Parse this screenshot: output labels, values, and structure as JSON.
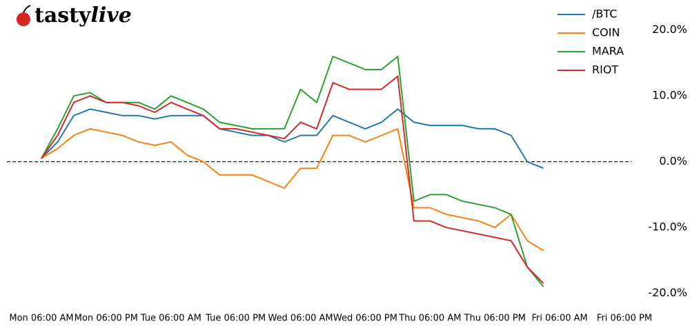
{
  "logo": {
    "text1": "tasty",
    "text2": "live"
  },
  "chart_data": {
    "type": "line",
    "categories": [
      "Mon 06:00 AM",
      null,
      null,
      null,
      "Mon 06:00 PM",
      null,
      null,
      null,
      "Tue 06:00 AM",
      null,
      null,
      null,
      "Tue 06:00 PM",
      null,
      null,
      null,
      "Wed 06:00 AM",
      null,
      null,
      null,
      "Wed 06:00 PM",
      null,
      null,
      null,
      "Thu 06:00 AM",
      null,
      null,
      null,
      "Thu 06:00 PM",
      null,
      null,
      null,
      "Fri 06:00 AM",
      null,
      null,
      null,
      "Fri 06:00 PM"
    ],
    "series": [
      {
        "name": "/BTC",
        "color": "#1f77b4",
        "values": [
          0.5,
          3,
          7,
          8,
          7.5,
          7,
          7,
          6.5,
          7,
          7,
          7,
          5,
          4.5,
          4,
          4,
          3,
          4,
          4,
          7,
          6,
          5,
          6,
          8,
          6,
          5.5,
          5.5,
          5.5,
          5,
          5,
          4,
          0,
          -1,
          null,
          null,
          null,
          null,
          null
        ]
      },
      {
        "name": "COIN",
        "color": "#ff7f0e",
        "values": [
          0.5,
          2,
          4,
          5,
          4.5,
          4,
          3,
          2.5,
          3,
          1,
          0,
          -2,
          -2,
          -2,
          -3,
          -4,
          -1,
          -1,
          4,
          4,
          3,
          4,
          5,
          -7,
          -7,
          -8,
          -8.5,
          -9,
          -10,
          -8,
          -12,
          -13.5,
          null,
          null,
          null,
          null,
          null
        ]
      },
      {
        "name": "MARA",
        "color": "#2ca02c",
        "values": [
          0.5,
          5,
          10,
          10.5,
          9,
          9,
          9,
          8,
          10,
          9,
          8,
          6,
          5.5,
          5,
          5,
          5,
          11,
          9,
          16,
          15,
          14,
          14,
          16,
          -6,
          -5,
          -5,
          -6,
          -6.5,
          -7,
          -8,
          -16,
          -19,
          null,
          null,
          null,
          null,
          null
        ]
      },
      {
        "name": "RIOT",
        "color": "#d62728",
        "values": [
          0.5,
          4,
          9,
          10,
          9,
          9,
          8.5,
          7.5,
          9,
          8,
          7,
          5,
          5,
          4.5,
          4,
          3.5,
          6,
          5,
          12,
          11,
          11,
          11,
          13,
          -9,
          -9,
          -10,
          -10.5,
          -11,
          -11.5,
          -12,
          -16,
          -18.5,
          null,
          null,
          null,
          null,
          null
        ]
      }
    ],
    "ylim": [
      -21.5,
      23
    ],
    "yticks": [
      {
        "value": 20,
        "label": "20.0%"
      },
      {
        "value": 10,
        "label": "10.0%"
      },
      {
        "value": 0,
        "label": "0.0%"
      },
      {
        "value": -10,
        "label": "-10.0%"
      },
      {
        "value": -20,
        "label": "-20.0%"
      }
    ],
    "reference_line": 0,
    "legend": "upper right",
    "grid": false
  }
}
